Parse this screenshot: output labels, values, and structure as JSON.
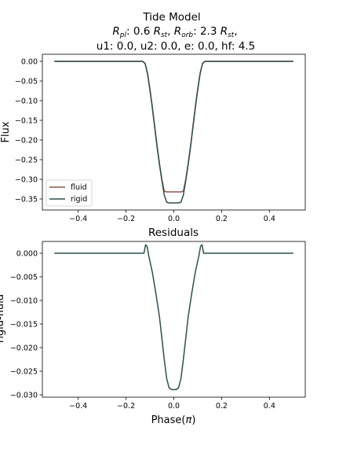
{
  "figure": {
    "title_line1": "Tide Model",
    "title_line2": {
      "r_pl_label": "R",
      "r_pl_sub": "pl",
      "r_pl_val": ": 0.6 ",
      "r_st1": "R",
      "r_st1_sub": "st",
      "comma1": ", ",
      "r_orb_label": "R",
      "r_orb_sub": "orb",
      "r_orb_val": ": 2.3 ",
      "r_st2": "R",
      "r_st2_sub": "st",
      "comma2": ","
    },
    "title_line3": "u1: 0.0, u2: 0.0, e: 0.0, hf: 4.5",
    "colors": {
      "fluid": "#8c564b",
      "rigid": "#2f4f4f"
    }
  },
  "chart_data": [
    {
      "type": "line",
      "ylabel": "Flux",
      "xlim": [
        -0.55,
        0.55
      ],
      "ylim": [
        -0.378,
        0.018
      ],
      "xticks": [
        "−0.4",
        "−0.2",
        "0.0",
        "0.2",
        "0.4"
      ],
      "xtick_values": [
        -0.4,
        -0.2,
        0.0,
        0.2,
        0.4
      ],
      "yticks": [
        "0.00",
        "−0.05",
        "−0.10",
        "−0.15",
        "−0.20",
        "−0.25",
        "−0.30",
        "−0.35"
      ],
      "ytick_values": [
        0.0,
        -0.05,
        -0.1,
        -0.15,
        -0.2,
        -0.25,
        -0.3,
        -0.35
      ],
      "legend": {
        "placement": "lower-left",
        "entries": [
          "fluid",
          "rigid"
        ]
      },
      "series": [
        {
          "name": "fluid",
          "color": "#8c564b",
          "x": [
            -0.5,
            -0.13,
            -0.12,
            -0.11,
            -0.1,
            -0.09,
            -0.08,
            -0.07,
            -0.06,
            -0.05,
            -0.04,
            -0.03,
            -0.02,
            -0.01,
            0.0,
            0.01,
            0.02,
            0.03,
            0.04,
            0.05,
            0.06,
            0.07,
            0.08,
            0.09,
            0.1,
            0.11,
            0.12,
            0.13,
            0.5
          ],
          "y": [
            0.0,
            0.0,
            -0.005,
            -0.03,
            -0.07,
            -0.115,
            -0.165,
            -0.215,
            -0.26,
            -0.3,
            -0.33,
            -0.332,
            -0.332,
            -0.332,
            -0.332,
            -0.332,
            -0.332,
            -0.332,
            -0.33,
            -0.3,
            -0.26,
            -0.215,
            -0.165,
            -0.115,
            -0.07,
            -0.03,
            -0.005,
            0.0,
            0.0
          ]
        },
        {
          "name": "rigid",
          "color": "#2f4f4f",
          "x": [
            -0.5,
            -0.13,
            -0.12,
            -0.11,
            -0.1,
            -0.09,
            -0.08,
            -0.07,
            -0.06,
            -0.05,
            -0.04,
            -0.03,
            -0.02,
            -0.01,
            0.0,
            0.01,
            0.02,
            0.03,
            0.04,
            0.05,
            0.06,
            0.07,
            0.08,
            0.09,
            0.1,
            0.11,
            0.12,
            0.13,
            0.5
          ],
          "y": [
            0.0,
            0.0,
            -0.006,
            -0.032,
            -0.073,
            -0.118,
            -0.168,
            -0.218,
            -0.263,
            -0.303,
            -0.34,
            -0.358,
            -0.36,
            -0.36,
            -0.36,
            -0.36,
            -0.36,
            -0.358,
            -0.34,
            -0.303,
            -0.263,
            -0.218,
            -0.168,
            -0.118,
            -0.073,
            -0.032,
            -0.006,
            0.0,
            0.0
          ]
        }
      ]
    },
    {
      "type": "line",
      "title": "Residuals",
      "ylabel": "rigid-fluid",
      "xlabel_main": "Phase(",
      "xlabel_symbol": "π",
      "xlabel_end": ")",
      "xlim": [
        -0.55,
        0.55
      ],
      "ylim": [
        -0.0305,
        0.0025
      ],
      "xticks": [
        "−0.4",
        "−0.2",
        "0.0",
        "0.2",
        "0.4"
      ],
      "xtick_values": [
        -0.4,
        -0.2,
        0.0,
        0.2,
        0.4
      ],
      "yticks": [
        "0.000",
        "−0.005",
        "−0.010",
        "−0.015",
        "−0.020",
        "−0.025",
        "−0.030"
      ],
      "ytick_values": [
        0.0,
        -0.005,
        -0.01,
        -0.015,
        -0.02,
        -0.025,
        -0.03
      ],
      "series": [
        {
          "name": "",
          "color": "#2f4f4f",
          "x": [
            -0.5,
            -0.125,
            -0.118,
            -0.112,
            -0.105,
            -0.09,
            -0.075,
            -0.06,
            -0.05,
            -0.04,
            -0.03,
            -0.02,
            -0.01,
            0.0,
            0.01,
            0.02,
            0.03,
            0.04,
            0.05,
            0.06,
            0.075,
            0.09,
            0.105,
            0.112,
            0.118,
            0.125,
            0.5
          ],
          "y": [
            0.0,
            0.0,
            0.0018,
            0.0015,
            -0.0005,
            -0.004,
            -0.0085,
            -0.0135,
            -0.018,
            -0.0225,
            -0.0265,
            -0.0285,
            -0.0289,
            -0.0289,
            -0.0289,
            -0.0285,
            -0.0265,
            -0.0225,
            -0.018,
            -0.0135,
            -0.0085,
            -0.004,
            -0.0005,
            0.0015,
            0.0018,
            0.0,
            0.0
          ]
        }
      ]
    }
  ]
}
